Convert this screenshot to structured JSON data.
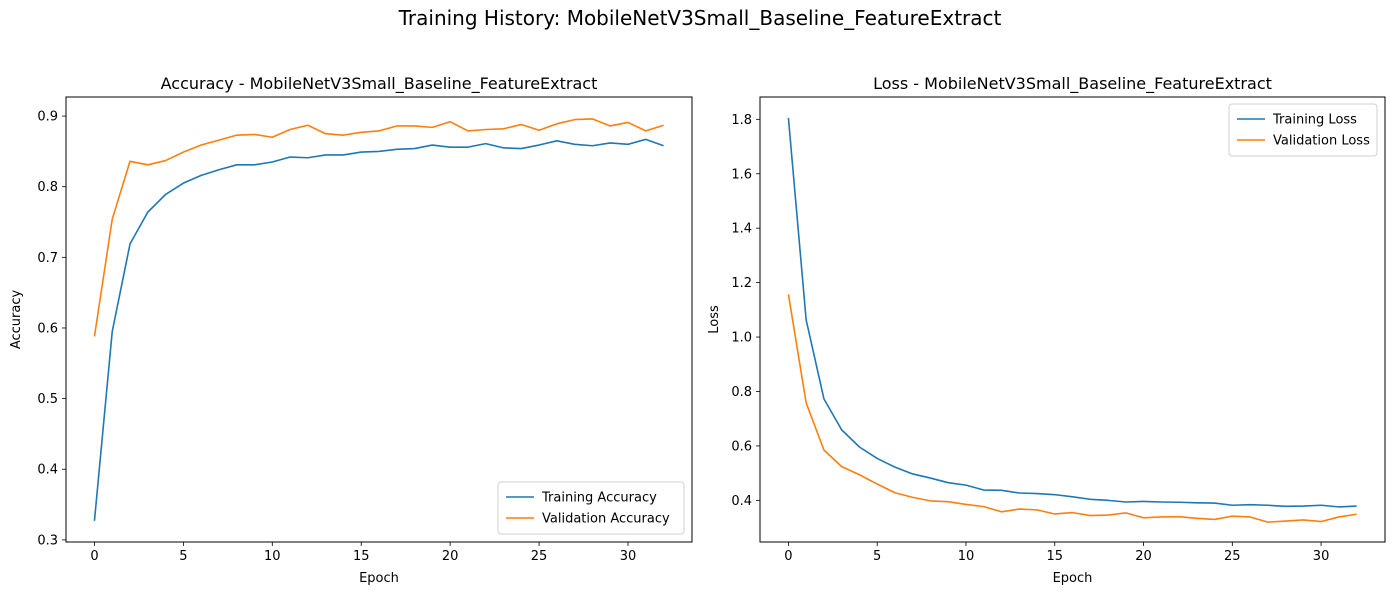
{
  "figure_title": "Training History: MobileNetV3Small_Baseline_FeatureExtract",
  "colors": {
    "train": "#1f77b4",
    "validation": "#ff7f0e"
  },
  "chart_data": [
    {
      "type": "line",
      "title": "Accuracy - MobileNetV3Small_Baseline_FeatureExtract",
      "xlabel": "Epoch",
      "ylabel": "Accuracy",
      "xlim": [
        -1.6,
        33.6
      ],
      "ylim": [
        0.297,
        0.927
      ],
      "xticks": [
        0,
        5,
        10,
        15,
        20,
        25,
        30
      ],
      "yticks": [
        0.3,
        0.4,
        0.5,
        0.6,
        0.7,
        0.8,
        0.9
      ],
      "ytick_labels": [
        "0.3",
        "0.4",
        "0.5",
        "0.6",
        "0.7",
        "0.8",
        "0.9"
      ],
      "legend": "lower right",
      "grid": false,
      "x": [
        0,
        1,
        2,
        3,
        4,
        5,
        6,
        7,
        8,
        9,
        10,
        11,
        12,
        13,
        14,
        15,
        16,
        17,
        18,
        19,
        20,
        21,
        22,
        23,
        24,
        25,
        26,
        27,
        28,
        29,
        30,
        31,
        32
      ],
      "series": [
        {
          "name": "Training Accuracy",
          "color": "#1f77b4",
          "values": [
            0.327,
            0.595,
            0.719,
            0.764,
            0.789,
            0.805,
            0.816,
            0.824,
            0.831,
            0.831,
            0.835,
            0.842,
            0.841,
            0.845,
            0.845,
            0.849,
            0.85,
            0.853,
            0.854,
            0.859,
            0.856,
            0.856,
            0.861,
            0.855,
            0.854,
            0.859,
            0.865,
            0.86,
            0.858,
            0.862,
            0.86,
            0.867,
            0.858
          ]
        },
        {
          "name": "Validation Accuracy",
          "color": "#ff7f0e",
          "values": [
            0.588,
            0.754,
            0.836,
            0.831,
            0.837,
            0.849,
            0.859,
            0.866,
            0.873,
            0.874,
            0.87,
            0.881,
            0.887,
            0.875,
            0.873,
            0.877,
            0.879,
            0.886,
            0.886,
            0.884,
            0.892,
            0.879,
            0.881,
            0.882,
            0.888,
            0.88,
            0.889,
            0.895,
            0.896,
            0.886,
            0.891,
            0.879,
            0.887
          ]
        }
      ]
    },
    {
      "type": "line",
      "title": "Loss - MobileNetV3Small_Baseline_FeatureExtract",
      "xlabel": "Epoch",
      "ylabel": "Loss",
      "xlim": [
        -1.6,
        33.6
      ],
      "ylim": [
        0.247,
        1.882
      ],
      "xticks": [
        0,
        5,
        10,
        15,
        20,
        25,
        30
      ],
      "yticks": [
        0.4,
        0.6,
        0.8,
        1.0,
        1.2,
        1.4,
        1.6,
        1.8
      ],
      "ytick_labels": [
        "0.4",
        "0.6",
        "0.8",
        "1.0",
        "1.2",
        "1.4",
        "1.6",
        "1.8"
      ],
      "legend": "upper right",
      "grid": false,
      "x": [
        0,
        1,
        2,
        3,
        4,
        5,
        6,
        7,
        8,
        9,
        10,
        11,
        12,
        13,
        14,
        15,
        16,
        17,
        18,
        19,
        20,
        21,
        22,
        23,
        24,
        25,
        26,
        27,
        28,
        29,
        30,
        31,
        32
      ],
      "series": [
        {
          "name": "Training Loss",
          "color": "#1f77b4",
          "values": [
            1.805,
            1.063,
            0.773,
            0.659,
            0.596,
            0.554,
            0.522,
            0.497,
            0.482,
            0.465,
            0.456,
            0.438,
            0.437,
            0.427,
            0.425,
            0.421,
            0.413,
            0.404,
            0.4,
            0.394,
            0.396,
            0.394,
            0.393,
            0.391,
            0.39,
            0.382,
            0.384,
            0.382,
            0.378,
            0.379,
            0.382,
            0.376,
            0.379
          ]
        },
        {
          "name": "Validation Loss",
          "color": "#ff7f0e",
          "values": [
            1.157,
            0.758,
            0.585,
            0.524,
            0.494,
            0.46,
            0.428,
            0.411,
            0.398,
            0.395,
            0.385,
            0.377,
            0.358,
            0.368,
            0.365,
            0.35,
            0.355,
            0.344,
            0.346,
            0.354,
            0.336,
            0.339,
            0.34,
            0.334,
            0.33,
            0.342,
            0.339,
            0.32,
            0.324,
            0.328,
            0.322,
            0.339,
            0.349
          ]
        }
      ]
    }
  ]
}
